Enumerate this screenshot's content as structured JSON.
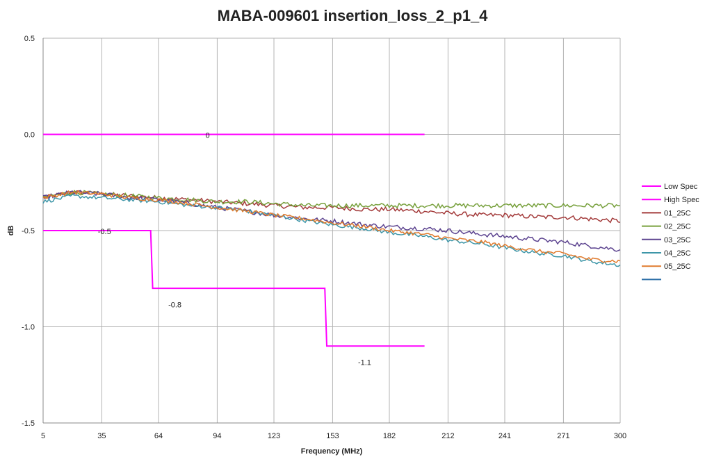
{
  "chart_data": {
    "type": "line",
    "title": "MABA-009601 insertion_loss_2_p1_4",
    "xlabel": "Frequency (MHz)",
    "ylabel": "dB",
    "xlim": [
      5,
      300
    ],
    "ylim": [
      -1.5,
      0.5
    ],
    "x_ticks": [
      5,
      35,
      64,
      94,
      123,
      153,
      182,
      212,
      241,
      271,
      300
    ],
    "y_ticks": [
      0.5,
      0.0,
      -0.5,
      -1.0,
      -1.5
    ],
    "y_tick_labels": [
      "0.5",
      "0.0",
      "-0.5",
      "-1.0",
      "-1.5"
    ],
    "grid": true,
    "legend_position": "right",
    "spec_lines": [
      {
        "name": "Low Spec",
        "color": "#ff00ff",
        "points": [
          [
            5,
            -0.5
          ],
          [
            60,
            -0.5
          ],
          [
            61,
            -0.8
          ],
          [
            149,
            -0.8
          ],
          [
            150,
            -1.1
          ],
          [
            200,
            -1.1
          ]
        ]
      },
      {
        "name": "High Spec",
        "color": "#ff00ff",
        "points": [
          [
            5,
            0.0
          ],
          [
            200,
            0.0
          ]
        ]
      }
    ],
    "annotations": [
      {
        "text": "0",
        "x": 88,
        "y": 0.0
      },
      {
        "text": "-0.5",
        "x": 33,
        "y": -0.5
      },
      {
        "text": "-0.8",
        "x": 69,
        "y": -0.88
      },
      {
        "text": "-1.1",
        "x": 166,
        "y": -1.18
      }
    ],
    "series": [
      {
        "name": "01_25C",
        "color": "#a33a3a",
        "points": [
          [
            5,
            -0.33
          ],
          [
            20,
            -0.3
          ],
          [
            35,
            -0.31
          ],
          [
            50,
            -0.32
          ],
          [
            64,
            -0.33
          ],
          [
            80,
            -0.34
          ],
          [
            94,
            -0.35
          ],
          [
            110,
            -0.36
          ],
          [
            123,
            -0.37
          ],
          [
            140,
            -0.38
          ],
          [
            153,
            -0.38
          ],
          [
            170,
            -0.39
          ],
          [
            182,
            -0.39
          ],
          [
            200,
            -0.4
          ],
          [
            212,
            -0.41
          ],
          [
            230,
            -0.42
          ],
          [
            241,
            -0.42
          ],
          [
            260,
            -0.43
          ],
          [
            271,
            -0.43
          ],
          [
            285,
            -0.44
          ],
          [
            300,
            -0.45
          ]
        ],
        "noise": 0.012
      },
      {
        "name": "02_25C",
        "color": "#77a03c",
        "points": [
          [
            5,
            -0.33
          ],
          [
            20,
            -0.3
          ],
          [
            35,
            -0.31
          ],
          [
            50,
            -0.32
          ],
          [
            64,
            -0.33
          ],
          [
            80,
            -0.34
          ],
          [
            94,
            -0.35
          ],
          [
            110,
            -0.35
          ],
          [
            123,
            -0.36
          ],
          [
            140,
            -0.37
          ],
          [
            153,
            -0.37
          ],
          [
            170,
            -0.37
          ],
          [
            182,
            -0.37
          ],
          [
            200,
            -0.37
          ],
          [
            212,
            -0.37
          ],
          [
            230,
            -0.37
          ],
          [
            241,
            -0.37
          ],
          [
            260,
            -0.37
          ],
          [
            271,
            -0.37
          ],
          [
            285,
            -0.37
          ],
          [
            300,
            -0.37
          ]
        ],
        "noise": 0.012
      },
      {
        "name": "03_25C",
        "color": "#5d4490",
        "points": [
          [
            5,
            -0.33
          ],
          [
            20,
            -0.3
          ],
          [
            35,
            -0.31
          ],
          [
            50,
            -0.33
          ],
          [
            64,
            -0.34
          ],
          [
            80,
            -0.36
          ],
          [
            94,
            -0.38
          ],
          [
            110,
            -0.4
          ],
          [
            123,
            -0.42
          ],
          [
            140,
            -0.44
          ],
          [
            153,
            -0.45
          ],
          [
            170,
            -0.47
          ],
          [
            182,
            -0.48
          ],
          [
            200,
            -0.49
          ],
          [
            212,
            -0.5
          ],
          [
            230,
            -0.52
          ],
          [
            241,
            -0.53
          ],
          [
            260,
            -0.55
          ],
          [
            271,
            -0.56
          ],
          [
            285,
            -0.58
          ],
          [
            300,
            -0.6
          ]
        ],
        "noise": 0.012
      },
      {
        "name": "04_25C",
        "color": "#3d96a8",
        "points": [
          [
            5,
            -0.35
          ],
          [
            20,
            -0.32
          ],
          [
            35,
            -0.33
          ],
          [
            50,
            -0.34
          ],
          [
            64,
            -0.35
          ],
          [
            80,
            -0.37
          ],
          [
            94,
            -0.38
          ],
          [
            110,
            -0.4
          ],
          [
            123,
            -0.42
          ],
          [
            140,
            -0.45
          ],
          [
            153,
            -0.47
          ],
          [
            170,
            -0.49
          ],
          [
            182,
            -0.51
          ],
          [
            200,
            -0.53
          ],
          [
            212,
            -0.55
          ],
          [
            230,
            -0.57
          ],
          [
            241,
            -0.59
          ],
          [
            260,
            -0.62
          ],
          [
            271,
            -0.63
          ],
          [
            285,
            -0.66
          ],
          [
            300,
            -0.68
          ]
        ],
        "noise": 0.01
      },
      {
        "name": "05_25C",
        "color": "#e07b2e",
        "points": [
          [
            5,
            -0.33
          ],
          [
            20,
            -0.3
          ],
          [
            35,
            -0.31
          ],
          [
            50,
            -0.33
          ],
          [
            64,
            -0.34
          ],
          [
            80,
            -0.36
          ],
          [
            94,
            -0.38
          ],
          [
            110,
            -0.4
          ],
          [
            123,
            -0.42
          ],
          [
            140,
            -0.44
          ],
          [
            153,
            -0.46
          ],
          [
            170,
            -0.48
          ],
          [
            182,
            -0.5
          ],
          [
            200,
            -0.52
          ],
          [
            212,
            -0.54
          ],
          [
            230,
            -0.56
          ],
          [
            241,
            -0.58
          ],
          [
            260,
            -0.61
          ],
          [
            271,
            -0.62
          ],
          [
            285,
            -0.65
          ],
          [
            300,
            -0.66
          ]
        ],
        "noise": 0.01
      }
    ],
    "legend": [
      {
        "label": "Low Spec",
        "color": "#ff00ff"
      },
      {
        "label": "High Spec",
        "color": "#ff00ff"
      },
      {
        "label": "01_25C",
        "color": "#a33a3a"
      },
      {
        "label": "02_25C",
        "color": "#77a03c"
      },
      {
        "label": "03_25C",
        "color": "#5d4490"
      },
      {
        "label": "04_25C",
        "color": "#3d96a8"
      },
      {
        "label": "05_25C",
        "color": "#e07b2e"
      },
      {
        "label": "",
        "color": "#2e6fa8"
      }
    ]
  }
}
